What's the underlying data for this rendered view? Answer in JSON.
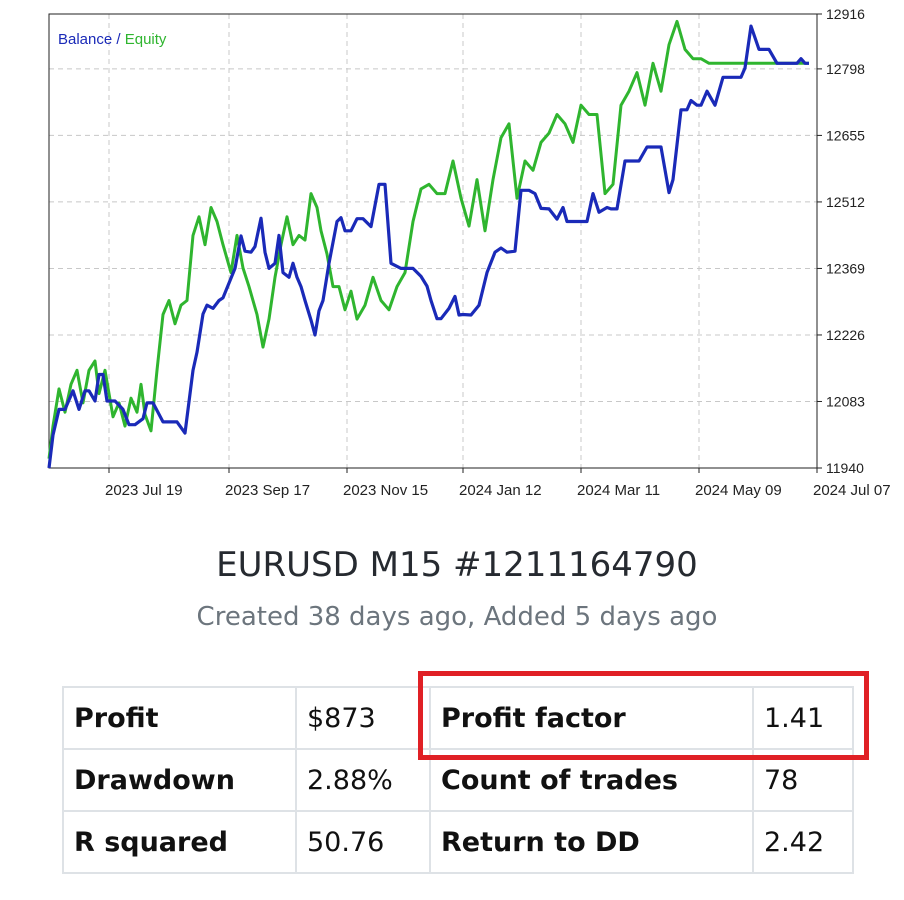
{
  "chart_data": {
    "type": "line",
    "title": "",
    "legend": [
      "Balance",
      "Equity"
    ],
    "legend_separator": "/",
    "legend_position": "top-left",
    "grid": true,
    "y_ticks": [
      12916,
      12798,
      12655,
      12512,
      12369,
      12226,
      12083,
      11940
    ],
    "ylim": [
      11940,
      12916
    ],
    "x_ticks": [
      "2023 Jul 19",
      "2023 Sep 17",
      "2023 Nov 15",
      "2024 Jan 12",
      "2024 Mar 11",
      "2024 May 09",
      "2024 Jul 07"
    ],
    "xlim": [
      "2023 Jun 19",
      "2024 Jul 07"
    ],
    "colors": {
      "balance": "#1a2ab8",
      "equity": "#2fb52f",
      "grid": "#c8c8c8",
      "axis": "#222222"
    },
    "series": [
      {
        "name": "Balance",
        "x": [
          "2023 Jun 19",
          "2023 Jun 21",
          "2023 Jun 24",
          "2023 Jun 27",
          "2023 Jul 01",
          "2023 Jul 04",
          "2023 Jul 07",
          "2023 Jul 09",
          "2023 Jul 12",
          "2023 Jul 14",
          "2023 Jul 16",
          "2023 Jul 18",
          "2023 Jul 20",
          "2023 Jul 22",
          "2023 Jul 26",
          "2023 Jul 29",
          "2023 Aug 01",
          "2023 Aug 05",
          "2023 Aug 07",
          "2023 Aug 10",
          "2023 Aug 15",
          "2023 Aug 17",
          "2023 Aug 22",
          "2023 Aug 26",
          "2023 Aug 30",
          "2023 Sep 01",
          "2023 Sep 04",
          "2023 Sep 06",
          "2023 Sep 09",
          "2023 Sep 12",
          "2023 Sep 14",
          "2023 Sep 20",
          "2023 Sep 23",
          "2023 Sep 25",
          "2023 Sep 28",
          "2023 Sep 30",
          "2023 Oct 03",
          "2023 Oct 05",
          "2023 Oct 07",
          "2023 Oct 10",
          "2023 Oct 12",
          "2023 Oct 14",
          "2023 Oct 17",
          "2023 Oct 19",
          "2023 Oct 21",
          "2023 Oct 23",
          "2023 Oct 25",
          "2023 Oct 28",
          "2023 Oct 30",
          "2023 Nov 01",
          "2023 Nov 03",
          "2023 Nov 06",
          "2023 Nov 10",
          "2023 Nov 12",
          "2023 Nov 14",
          "2023 Nov 17",
          "2023 Nov 20",
          "2023 Nov 23",
          "2023 Nov 27",
          "2023 Dec 01",
          "2023 Dec 04",
          "2023 Dec 07",
          "2023 Dec 12",
          "2023 Dec 16",
          "2023 Dec 18",
          "2023 Dec 22",
          "2023 Dec 25",
          "2023 Dec 27",
          "2023 Dec 30",
          "2024 Jan 01",
          "2024 Jan 05",
          "2024 Jan 08",
          "2024 Jan 10",
          "2024 Jan 12",
          "2024 Jan 16",
          "2024 Jan 20",
          "2024 Jan 24",
          "2024 Jan 28",
          "2024 Jan 31",
          "2024 Feb 03",
          "2024 Feb 07",
          "2024 Feb 10",
          "2024 Feb 14",
          "2024 Feb 17",
          "2024 Feb 20",
          "2024 Feb 24",
          "2024 Feb 28",
          "2024 Mar 02",
          "2024 Mar 04",
          "2024 Mar 09",
          "2024 Mar 14",
          "2024 Mar 17",
          "2024 Mar 20",
          "2024 Mar 24",
          "2024 Mar 26",
          "2024 Mar 29",
          "2024 Apr 02",
          "2024 Apr 05",
          "2024 Apr 09",
          "2024 Apr 13",
          "2024 Apr 16",
          "2024 Apr 20",
          "2024 Apr 24",
          "2024 Apr 26",
          "2024 Apr 30",
          "2024 May 03",
          "2024 May 05",
          "2024 May 08",
          "2024 May 10",
          "2024 May 13",
          "2024 May 17",
          "2024 May 21",
          "2024 May 26",
          "2024 May 30",
          "2024 Jun 01",
          "2024 Jun 04",
          "2024 Jun 08",
          "2024 Jun 13",
          "2024 Jun 17",
          "2024 Jun 21",
          "2024 Jun 24",
          "2024 Jun 27",
          "2024 Jun 29",
          "2024 Jul 01",
          "2024 Jul 03"
        ],
        "y": [
          11940,
          12011,
          12066,
          12066,
          12106,
          12066,
          12106,
          12106,
          12084,
          12141,
          12141,
          12084,
          12084,
          12084,
          12066,
          12033,
          12033,
          12046,
          12080,
          12080,
          12039,
          12039,
          12039,
          12015,
          12150,
          12189,
          12271,
          12290,
          12283,
          12300,
          12306,
          12369,
          12439,
          12406,
          12404,
          12416,
          12477,
          12404,
          12369,
          12380,
          12440,
          12360,
          12350,
          12380,
          12350,
          12330,
          12300,
          12258,
          12226,
          12278,
          12300,
          12380,
          12470,
          12478,
          12450,
          12450,
          12476,
          12476,
          12459,
          12550,
          12550,
          12380,
          12369,
          12369,
          12369,
          12352,
          12331,
          12300,
          12261,
          12261,
          12283,
          12309,
          12269,
          12270,
          12269,
          12290,
          12360,
          12404,
          12413,
          12404,
          12406,
          12537,
          12537,
          12530,
          12498,
          12497,
          12475,
          12500,
          12470,
          12470,
          12470,
          12530,
          12490,
          12500,
          12497,
          12497,
          12600,
          12600,
          12600,
          12630,
          12630,
          12630,
          12532,
          12560,
          12710,
          12710,
          12730,
          12720,
          12720,
          12750,
          12720,
          12780,
          12780,
          12780,
          12800,
          12890,
          12840,
          12840,
          12810,
          12810,
          12810,
          12810,
          12820,
          12810,
          12810
        ]
      },
      {
        "name": "Equity",
        "x": [
          "2023 Jun 19",
          "2023 Jun 21",
          "2023 Jun 24",
          "2023 Jun 27",
          "2023 Jun 30",
          "2023 Jul 03",
          "2023 Jul 06",
          "2023 Jul 09",
          "2023 Jul 12",
          "2023 Jul 14",
          "2023 Jul 17",
          "2023 Jul 21",
          "2023 Jul 24",
          "2023 Jul 27",
          "2023 Jul 30",
          "2023 Aug 02",
          "2023 Aug 04",
          "2023 Aug 06",
          "2023 Aug 09",
          "2023 Aug 12",
          "2023 Aug 15",
          "2023 Aug 18",
          "2023 Aug 21",
          "2023 Aug 24",
          "2023 Aug 27",
          "2023 Aug 30",
          "2023 Sep 02",
          "2023 Sep 05",
          "2023 Sep 08",
          "2023 Sep 11",
          "2023 Sep 14",
          "2023 Sep 18",
          "2023 Sep 21",
          "2023 Sep 24",
          "2023 Sep 27",
          "2023 Oct 01",
          "2023 Oct 04",
          "2023 Oct 07",
          "2023 Oct 10",
          "2023 Oct 13",
          "2023 Oct 16",
          "2023 Oct 19",
          "2023 Oct 22",
          "2023 Oct 25",
          "2023 Oct 28",
          "2023 Oct 31",
          "2023 Nov 02",
          "2023 Nov 05",
          "2023 Nov 08",
          "2023 Nov 11",
          "2023 Nov 14",
          "2023 Nov 17",
          "2023 Nov 20",
          "2023 Nov 24",
          "2023 Nov 28",
          "2023 Dec 02",
          "2023 Dec 06",
          "2023 Dec 10",
          "2023 Dec 14",
          "2023 Dec 18",
          "2023 Dec 22",
          "2023 Dec 26",
          "2023 Dec 30",
          "2024 Jan 03",
          "2024 Jan 07",
          "2024 Jan 11",
          "2024 Jan 15",
          "2024 Jan 19",
          "2024 Jan 23",
          "2024 Jan 27",
          "2024 Jan 31",
          "2024 Feb 04",
          "2024 Feb 08",
          "2024 Feb 12",
          "2024 Feb 16",
          "2024 Feb 20",
          "2024 Feb 24",
          "2024 Feb 28",
          "2024 Mar 03",
          "2024 Mar 07",
          "2024 Mar 11",
          "2024 Mar 15",
          "2024 Mar 19",
          "2024 Mar 23",
          "2024 Mar 27",
          "2024 Mar 31",
          "2024 Apr 04",
          "2024 Apr 08",
          "2024 Apr 12",
          "2024 Apr 16",
          "2024 Apr 20",
          "2024 Apr 24",
          "2024 Apr 28",
          "2024 May 02",
          "2024 May 06",
          "2024 May 10",
          "2024 May 14",
          "2024 May 18",
          "2024 May 22",
          "2024 May 26",
          "2024 May 30",
          "2024 Jun 03",
          "2024 Jun 07",
          "2024 Jun 11",
          "2024 Jun 15",
          "2024 Jun 19",
          "2024 Jun 23",
          "2024 Jun 27",
          "2024 Jul 01",
          "2024 Jul 03"
        ],
        "y": [
          11960,
          12030,
          12110,
          12060,
          12120,
          12150,
          12080,
          12150,
          12170,
          12100,
          12150,
          12050,
          12080,
          12030,
          12090,
          12060,
          12120,
          12055,
          12020,
          12150,
          12270,
          12300,
          12250,
          12290,
          12300,
          12440,
          12480,
          12420,
          12500,
          12470,
          12420,
          12360,
          12440,
          12370,
          12330,
          12270,
          12200,
          12260,
          12350,
          12420,
          12480,
          12420,
          12440,
          12430,
          12530,
          12500,
          12450,
          12400,
          12330,
          12330,
          12280,
          12320,
          12260,
          12290,
          12350,
          12300,
          12280,
          12330,
          12360,
          12470,
          12540,
          12550,
          12530,
          12530,
          12600,
          12520,
          12460,
          12560,
          12450,
          12560,
          12650,
          12680,
          12520,
          12600,
          12580,
          12640,
          12660,
          12700,
          12680,
          12640,
          12720,
          12700,
          12700,
          12530,
          12550,
          12720,
          12750,
          12790,
          12720,
          12810,
          12750,
          12850,
          12900,
          12840,
          12820,
          12820,
          12810,
          12810,
          12810,
          12810,
          12810,
          12810,
          12810,
          12810,
          12810,
          12810,
          12810,
          12810,
          12810,
          12810
        ]
      }
    ]
  },
  "title": "EURUSD M15 #1211164790",
  "subtitle": "Created 38 days ago, Added 5 days ago",
  "stats": [
    {
      "label": "Profit",
      "value": "$873",
      "label2": "Profit factor",
      "value2": "1.41"
    },
    {
      "label": "Drawdown",
      "value": "2.88%",
      "label2": "Count of trades",
      "value2": "78"
    },
    {
      "label": "R squared",
      "value": "50.76",
      "label2": "Return to DD",
      "value2": "2.42"
    }
  ]
}
